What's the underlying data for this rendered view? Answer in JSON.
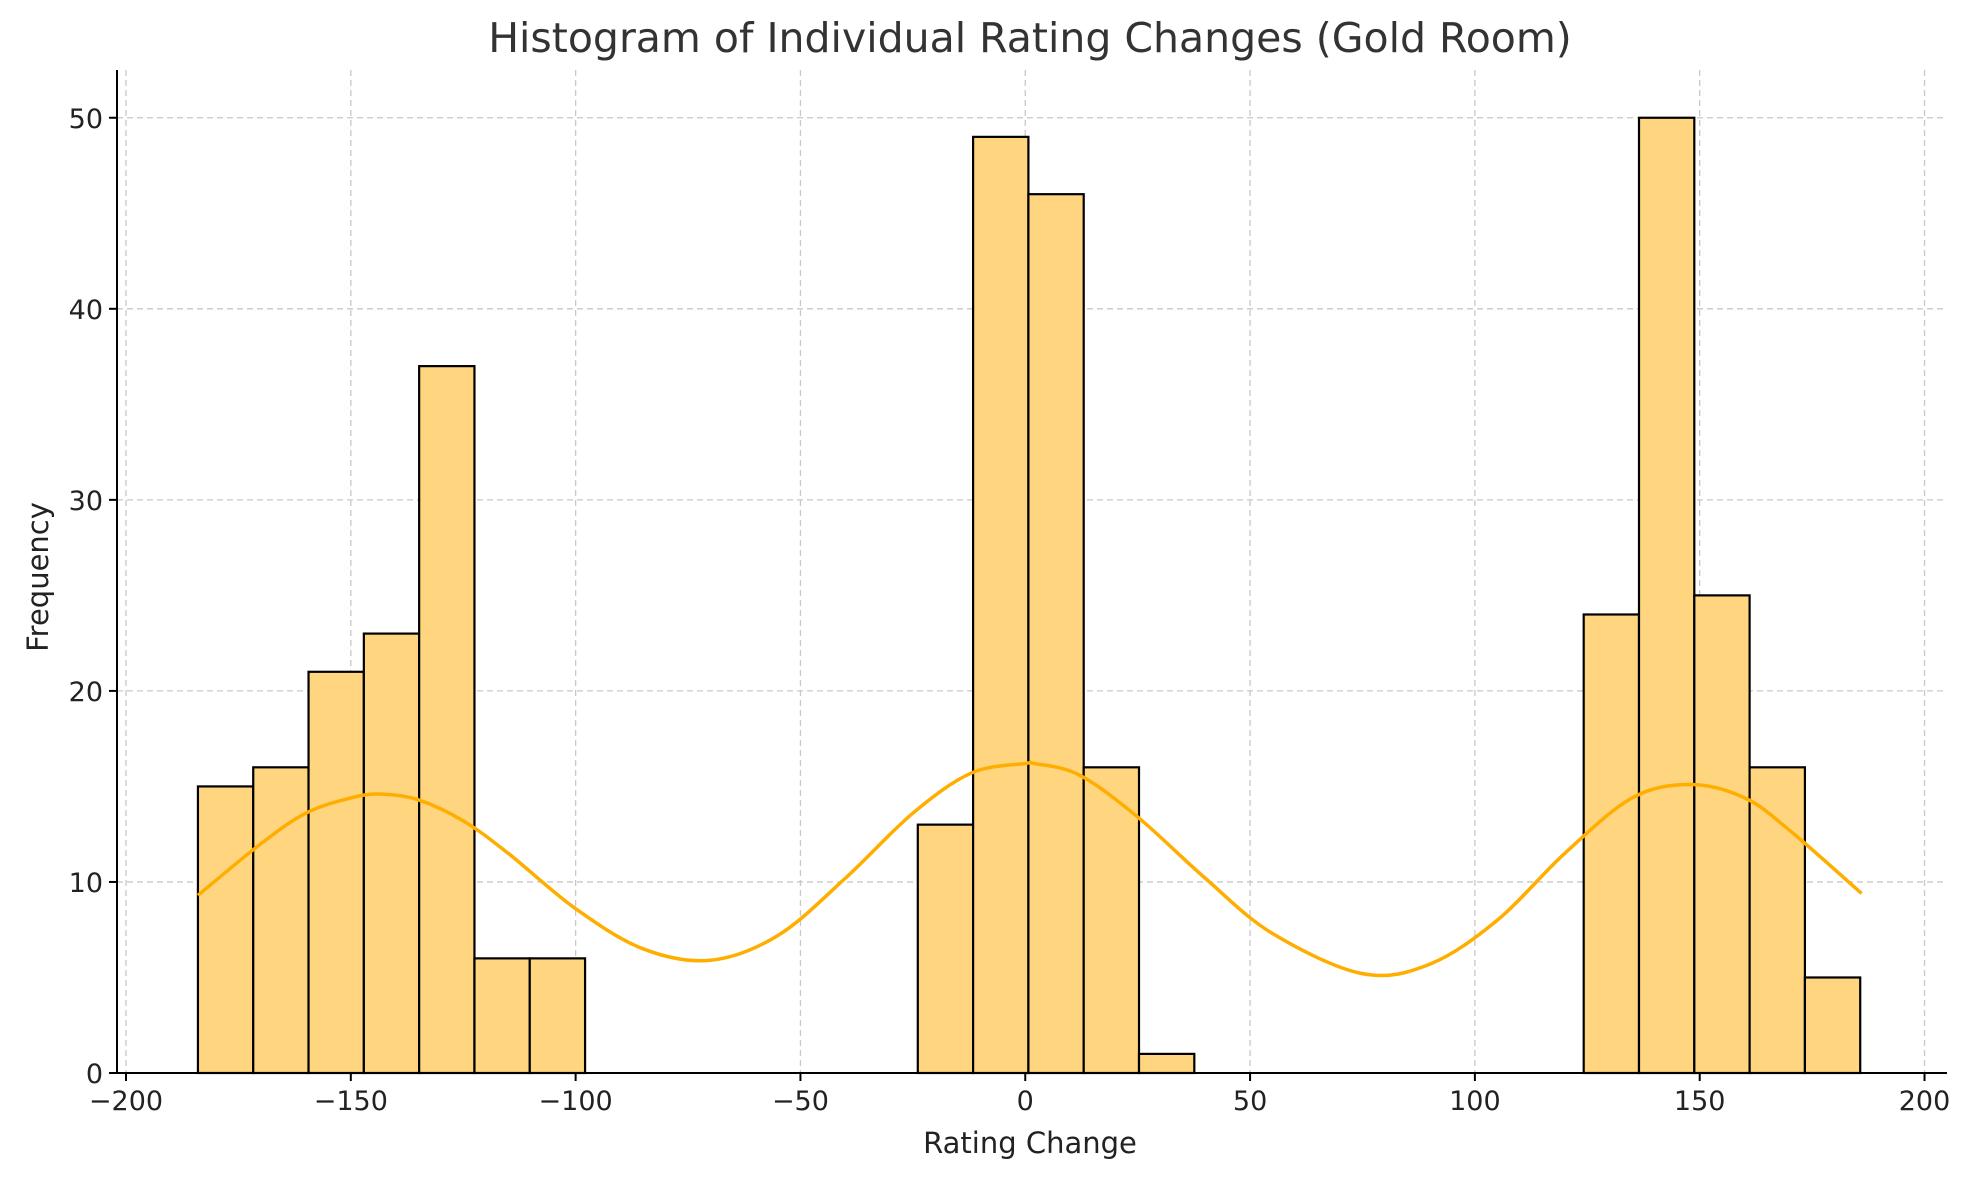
{
  "chart_data": {
    "type": "bar",
    "title": "Histogram of Individual Rating Changes (Gold Room)",
    "xlabel": "Rating Change",
    "ylabel": "Frequency",
    "xlim": [
      -202,
      205
    ],
    "ylim": [
      0,
      52.5
    ],
    "xticks": [
      -200,
      -150,
      -100,
      -50,
      0,
      50,
      100,
      150,
      200
    ],
    "yticks": [
      0,
      10,
      20,
      30,
      40,
      50
    ],
    "grid": true,
    "bar_color": "#FFD580",
    "edge_color": "#000000",
    "kde_color": "#FFAE00",
    "bins": [
      {
        "x0": -184,
        "x1": -171.7,
        "count": 15
      },
      {
        "x0": -171.7,
        "x1": -159.4,
        "count": 16
      },
      {
        "x0": -159.4,
        "x1": -147.1,
        "count": 21
      },
      {
        "x0": -147.1,
        "x1": -134.8,
        "count": 23
      },
      {
        "x0": -134.8,
        "x1": -122.5,
        "count": 37
      },
      {
        "x0": -122.5,
        "x1": -110.2,
        "count": 6
      },
      {
        "x0": -110.2,
        "x1": -97.9,
        "count": 6
      },
      {
        "x0": -23.9,
        "x1": -11.6,
        "count": 13
      },
      {
        "x0": -11.6,
        "x1": 0.7,
        "count": 49
      },
      {
        "x0": 0.7,
        "x1": 13.0,
        "count": 46
      },
      {
        "x0": 13.0,
        "x1": 25.3,
        "count": 16
      },
      {
        "x0": 25.3,
        "x1": 37.6,
        "count": 1
      },
      {
        "x0": 124.2,
        "x1": 136.5,
        "count": 24
      },
      {
        "x0": 136.5,
        "x1": 148.8,
        "count": 50
      },
      {
        "x0": 148.8,
        "x1": 161.1,
        "count": 25
      },
      {
        "x0": 161.1,
        "x1": 173.4,
        "count": 16
      },
      {
        "x0": 173.4,
        "x1": 185.7,
        "count": 5
      }
    ],
    "kde": {
      "x": [
        -184,
        -170,
        -160,
        -150,
        -143,
        -135,
        -125,
        -115,
        -100,
        -85,
        -70,
        -55,
        -40,
        -25,
        -12,
        0,
        2,
        12,
        25,
        40,
        55,
        75,
        90,
        105,
        120,
        135,
        148,
        160,
        170,
        186
      ],
      "y": [
        9.3,
        12.0,
        13.6,
        14.4,
        14.6,
        14.3,
        13.2,
        11.5,
        8.6,
        6.5,
        5.9,
        7.2,
        10.2,
        13.6,
        15.7,
        16.2,
        16.2,
        15.6,
        13.4,
        10.2,
        7.3,
        5.2,
        5.7,
        8.0,
        11.5,
        14.4,
        15.1,
        14.4,
        12.7,
        9.4
      ]
    }
  }
}
